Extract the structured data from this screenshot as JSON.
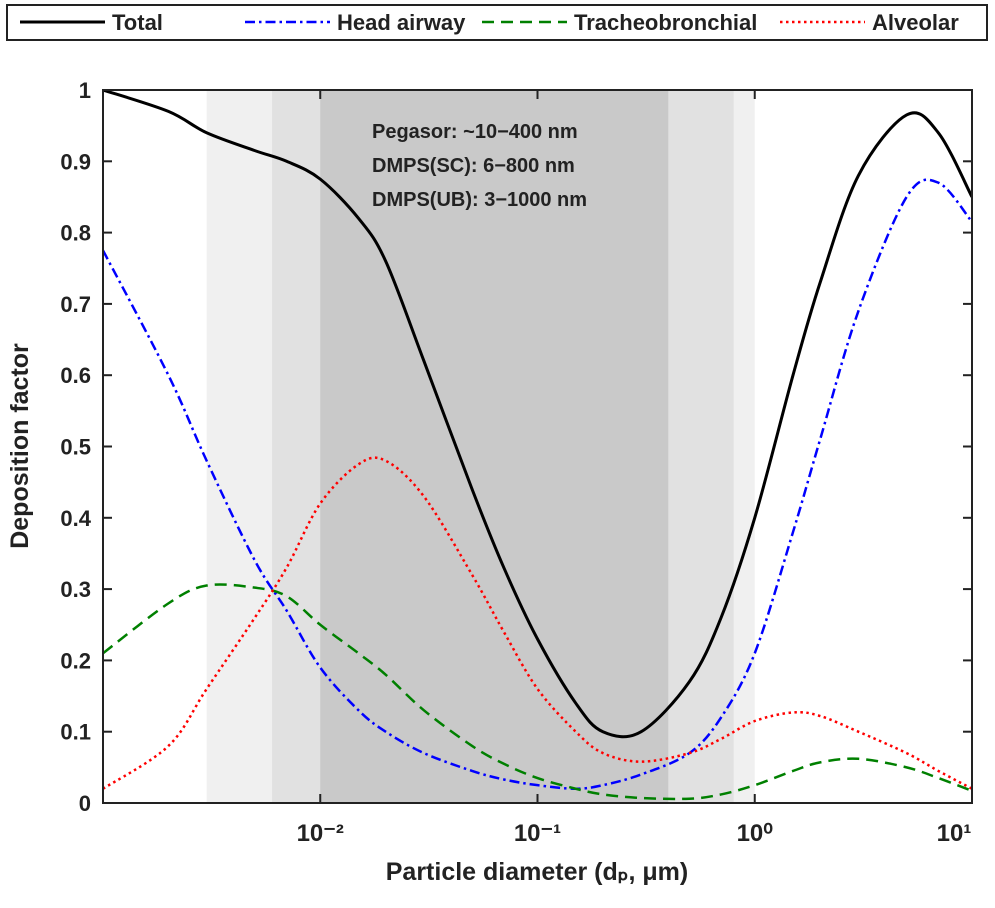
{
  "chart_data": {
    "type": "line",
    "x_label": "Particle diameter (dₚ, μm)",
    "y_label": "Deposition factor",
    "xscale": "log",
    "xlim": [
      0.001,
      10
    ],
    "ylim": [
      0,
      1
    ],
    "xticks": [
      {
        "value": 0.01,
        "label": "10⁻²"
      },
      {
        "value": 0.1,
        "label": "10⁻¹"
      },
      {
        "value": 1,
        "label": "10⁰"
      },
      {
        "value": 10,
        "label": "10¹"
      }
    ],
    "yticks": [
      0,
      0.1,
      0.2,
      0.3,
      0.4,
      0.5,
      0.6,
      0.7,
      0.8,
      0.9,
      1
    ],
    "legend": "top",
    "bands": [
      {
        "from": 0.003,
        "to": 1,
        "color": "#f0f0f0"
      },
      {
        "from": 0.006,
        "to": 0.8,
        "color": "#e1e1e1"
      },
      {
        "from": 0.01,
        "to": 0.4,
        "color": "#c9c9c9"
      }
    ],
    "annotations": [
      "Pegasor: ~10−400 nm",
      "DMPS(SC): 6−800 nm",
      "DMPS(UB): 3−1000 nm"
    ],
    "x": [
      0.001,
      0.002,
      0.003,
      0.005,
      0.007,
      0.01,
      0.015,
      0.02,
      0.03,
      0.05,
      0.07,
      0.1,
      0.15,
      0.2,
      0.3,
      0.5,
      0.7,
      1,
      1.5,
      2,
      3,
      5,
      7,
      10
    ],
    "series": [
      {
        "name": "Total",
        "color": "#000000",
        "dash": "solid",
        "values": [
          1.0,
          0.97,
          0.94,
          0.915,
          0.9,
          0.875,
          0.82,
          0.76,
          0.62,
          0.44,
          0.33,
          0.23,
          0.14,
          0.1,
          0.1,
          0.17,
          0.26,
          0.4,
          0.6,
          0.73,
          0.88,
          0.965,
          0.94,
          0.85
        ]
      },
      {
        "name": "Head airway",
        "color": "#0000ff",
        "dash": "dashdot",
        "values": [
          0.775,
          0.6,
          0.48,
          0.34,
          0.27,
          0.19,
          0.13,
          0.1,
          0.07,
          0.045,
          0.033,
          0.025,
          0.02,
          0.025,
          0.04,
          0.07,
          0.12,
          0.21,
          0.38,
          0.51,
          0.69,
          0.85,
          0.87,
          0.815
        ]
      },
      {
        "name": "Tracheobronchial",
        "color": "#008000",
        "dash": "dashed",
        "values": [
          0.21,
          0.28,
          0.305,
          0.302,
          0.29,
          0.25,
          0.21,
          0.18,
          0.13,
          0.08,
          0.055,
          0.035,
          0.02,
          0.012,
          0.007,
          0.006,
          0.012,
          0.025,
          0.045,
          0.057,
          0.062,
          0.05,
          0.035,
          0.017
        ]
      },
      {
        "name": "Alveolar",
        "color": "#ff0000",
        "dash": "dotted",
        "values": [
          0.02,
          0.08,
          0.16,
          0.26,
          0.33,
          0.42,
          0.475,
          0.48,
          0.43,
          0.32,
          0.24,
          0.16,
          0.1,
          0.07,
          0.058,
          0.07,
          0.09,
          0.115,
          0.127,
          0.122,
          0.1,
          0.07,
          0.045,
          0.02
        ]
      }
    ]
  }
}
